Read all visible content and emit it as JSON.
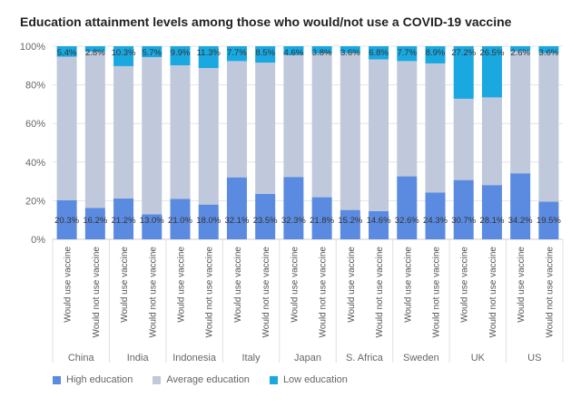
{
  "chart_data": {
    "type": "bar",
    "stacked": true,
    "title": "Education attainment levels among those who would/not use a COVID-19 vaccine",
    "ylim": [
      0,
      100
    ],
    "yticks": [
      "0%",
      "20%",
      "40%",
      "60%",
      "80%",
      "100%"
    ],
    "groups": [
      "China",
      "India",
      "Indonesia",
      "Italy",
      "Japan",
      "S. Africa",
      "Sweden",
      "UK",
      "US"
    ],
    "categories": [
      "Would use vaccine",
      "Would not use vaccine",
      "Would use vaccine",
      "Would not use vaccine",
      "Would use vaccine",
      "Would not use vaccine",
      "Would use vaccine",
      "Would not use vaccine",
      "Would use vaccine",
      "Would not use vaccine",
      "Would use vaccine",
      "Would not use vaccine",
      "Would use vaccine",
      "Would not use vaccine",
      "Would use vaccine",
      "Would not use vaccine",
      "Would use vaccine",
      "Would not use vaccine"
    ],
    "series": [
      {
        "name": "High education",
        "color": "#5b8be0",
        "values": [
          20.3,
          16.2,
          21.2,
          13.0,
          21.0,
          18.0,
          32.1,
          23.5,
          32.3,
          21.8,
          15.2,
          14.6,
          32.6,
          24.3,
          30.7,
          28.1,
          34.2,
          19.5
        ],
        "labels": [
          "20.3%",
          "16.2%",
          "21.2%",
          "13.0%",
          "21.0%",
          "18.0%",
          "32.1%",
          "23.5%",
          "32.3%",
          "21.8%",
          "15.2%",
          "14.6%",
          "32.6%",
          "24.3%",
          "30.7%",
          "28.1%",
          "34.2%",
          "19.5%"
        ]
      },
      {
        "name": "Average education",
        "color": "#bfc9db",
        "values": [
          74.3,
          81.0,
          68.5,
          81.3,
          69.1,
          70.7,
          60.2,
          68.0,
          63.1,
          74.4,
          81.2,
          78.6,
          59.7,
          66.8,
          42.1,
          45.4,
          63.2,
          76.9
        ],
        "labels": []
      },
      {
        "name": "Low education",
        "color": "#19a8e0",
        "values": [
          5.4,
          2.8,
          10.3,
          5.7,
          9.9,
          11.3,
          7.7,
          8.5,
          4.6,
          3.8,
          3.6,
          6.8,
          7.7,
          8.9,
          27.2,
          26.5,
          2.6,
          3.6
        ],
        "labels": [
          "5.4%",
          "2.8%",
          "10.3%",
          "5.7%",
          "9.9%",
          "11.3%",
          "7.7%",
          "8.5%",
          "4.6%",
          "3.8%",
          "3.6%",
          "6.8%",
          "7.7%",
          "8.9%",
          "27.2%",
          "26.5%",
          "2.6%",
          "3.6%"
        ]
      }
    ],
    "legend_position": "bottom-left",
    "grid": true
  }
}
